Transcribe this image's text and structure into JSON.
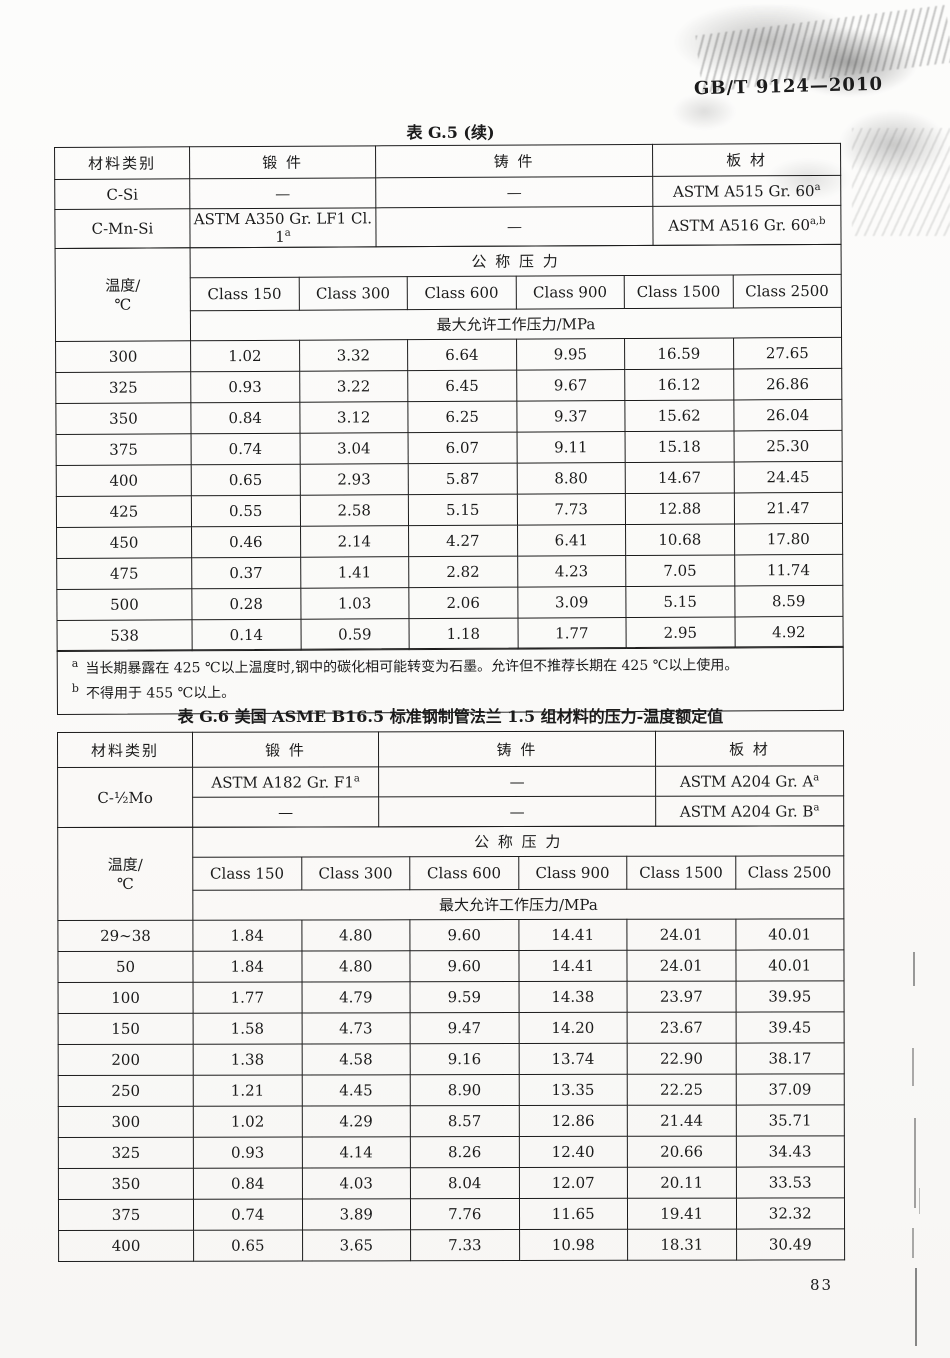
{
  "page": {
    "doc_code": "GB/T 9124—2010",
    "page_number": "83",
    "colors": {
      "ink": "#1b1b1b",
      "paper": "#faf9f7",
      "border": "#1c1c1c"
    }
  },
  "table_g5": {
    "title": "表 G.5 (续)",
    "materials_header": {
      "category": "材料类别",
      "forging": "锻  件",
      "casting": "铸  件",
      "plate": "板  材"
    },
    "materials": [
      {
        "category": "C-Si",
        "forging": "—",
        "casting": "—",
        "plate": "ASTM A515 Gr. 60",
        "plate_sup": "a"
      },
      {
        "category": "C-Mn-Si",
        "forging": "ASTM A350 Gr. LF1 Cl. 1",
        "forging_sup": "a",
        "casting": "—",
        "plate": "ASTM A516 Gr. 60",
        "plate_sup": "a,b"
      }
    ],
    "temp_label": [
      "温度/",
      "℃"
    ],
    "pressure_header": "公  称  压  力",
    "classes": [
      "Class 150",
      "Class 300",
      "Class 600",
      "Class 900",
      "Class 1500",
      "Class 2500"
    ],
    "mawp_header": "最大允许工作压力/MPa",
    "rows": [
      {
        "temp": "300",
        "values": [
          "1.02",
          "3.32",
          "6.64",
          "9.95",
          "16.59",
          "27.65"
        ]
      },
      {
        "temp": "325",
        "values": [
          "0.93",
          "3.22",
          "6.45",
          "9.67",
          "16.12",
          "26.86"
        ]
      },
      {
        "temp": "350",
        "values": [
          "0.84",
          "3.12",
          "6.25",
          "9.37",
          "15.62",
          "26.04"
        ]
      },
      {
        "temp": "375",
        "values": [
          "0.74",
          "3.04",
          "6.07",
          "9.11",
          "15.18",
          "25.30"
        ]
      },
      {
        "temp": "400",
        "values": [
          "0.65",
          "2.93",
          "5.87",
          "8.80",
          "14.67",
          "24.45"
        ]
      },
      {
        "temp": "425",
        "values": [
          "0.55",
          "2.58",
          "5.15",
          "7.73",
          "12.88",
          "21.47"
        ]
      },
      {
        "temp": "450",
        "values": [
          "0.46",
          "2.14",
          "4.27",
          "6.41",
          "10.68",
          "17.80"
        ]
      },
      {
        "temp": "475",
        "values": [
          "0.37",
          "1.41",
          "2.82",
          "4.23",
          "7.05",
          "11.74"
        ]
      },
      {
        "temp": "500",
        "values": [
          "0.28",
          "1.03",
          "2.06",
          "3.09",
          "5.15",
          "8.59"
        ]
      },
      {
        "temp": "538",
        "values": [
          "0.14",
          "0.59",
          "1.18",
          "1.77",
          "2.95",
          "4.92"
        ]
      }
    ],
    "footnotes": [
      {
        "sup": "a",
        "text": "当长期暴露在 425 ℃以上温度时,钢中的碳化相可能转变为石墨。允许但不推荐长期在 425 ℃以上使用。"
      },
      {
        "sup": "b",
        "text": "不得用于 455 ℃以上。"
      }
    ]
  },
  "table_g6": {
    "title": "表 G.6  美国 ASME B16.5 标准钢制管法兰 1.5 组材料的压力-温度额定值",
    "materials_header": {
      "category": "材料类别",
      "forging": "锻  件",
      "casting": "铸  件",
      "plate": "板  材"
    },
    "material_category": "C-½Mo",
    "material_rows": [
      {
        "forging": "ASTM A182 Gr. F1",
        "forging_sup": "a",
        "casting": "—",
        "plate": "ASTM A204 Gr. A",
        "plate_sup": "a"
      },
      {
        "forging": "—",
        "casting": "—",
        "plate": "ASTM A204 Gr. B",
        "plate_sup": "a"
      }
    ],
    "temp_label": [
      "温度/",
      "℃"
    ],
    "pressure_header": "公  称  压  力",
    "classes": [
      "Class 150",
      "Class 300",
      "Class 600",
      "Class 900",
      "Class 1500",
      "Class 2500"
    ],
    "mawp_header": "最大允许工作压力/MPa",
    "rows": [
      {
        "temp": "29~38",
        "values": [
          "1.84",
          "4.80",
          "9.60",
          "14.41",
          "24.01",
          "40.01"
        ]
      },
      {
        "temp": "50",
        "values": [
          "1.84",
          "4.80",
          "9.60",
          "14.41",
          "24.01",
          "40.01"
        ]
      },
      {
        "temp": "100",
        "values": [
          "1.77",
          "4.79",
          "9.59",
          "14.38",
          "23.97",
          "39.95"
        ]
      },
      {
        "temp": "150",
        "values": [
          "1.58",
          "4.73",
          "9.47",
          "14.20",
          "23.67",
          "39.45"
        ]
      },
      {
        "temp": "200",
        "values": [
          "1.38",
          "4.58",
          "9.16",
          "13.74",
          "22.90",
          "38.17"
        ]
      },
      {
        "temp": "250",
        "values": [
          "1.21",
          "4.45",
          "8.90",
          "13.35",
          "22.25",
          "37.09"
        ]
      },
      {
        "temp": "300",
        "values": [
          "1.02",
          "4.29",
          "8.57",
          "12.86",
          "21.44",
          "35.71"
        ]
      },
      {
        "temp": "325",
        "values": [
          "0.93",
          "4.14",
          "8.26",
          "12.40",
          "20.66",
          "34.43"
        ]
      },
      {
        "temp": "350",
        "values": [
          "0.84",
          "4.03",
          "8.04",
          "12.07",
          "20.11",
          "33.53"
        ]
      },
      {
        "temp": "375",
        "values": [
          "0.74",
          "3.89",
          "7.76",
          "11.65",
          "19.41",
          "32.32"
        ]
      },
      {
        "temp": "400",
        "values": [
          "0.65",
          "3.65",
          "7.33",
          "10.98",
          "18.31",
          "30.49"
        ]
      }
    ]
  }
}
